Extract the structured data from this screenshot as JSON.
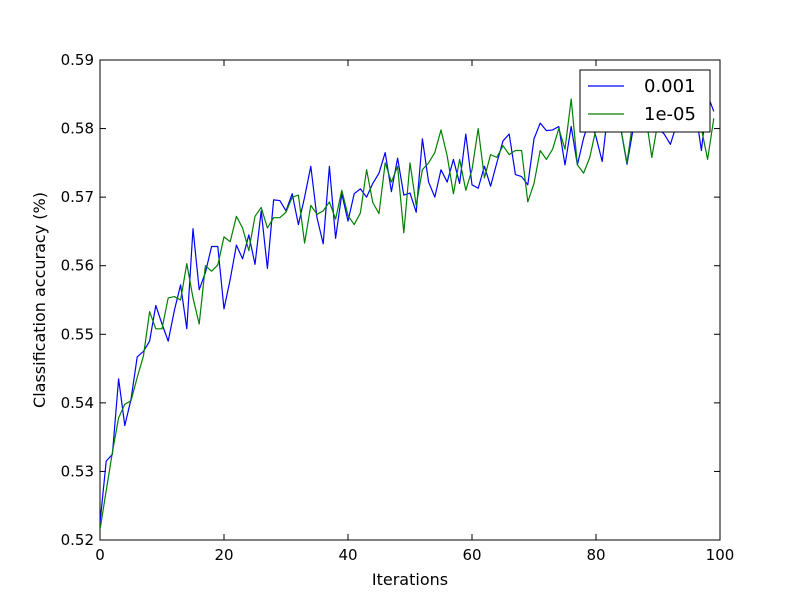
{
  "chart_data": {
    "type": "line",
    "xlabel": "Iterations",
    "ylabel": "Classification accuracy (%)",
    "xlim": [
      0,
      100
    ],
    "ylim": [
      0.52,
      0.59
    ],
    "x_ticks": [
      0,
      20,
      40,
      60,
      80,
      100
    ],
    "x_tick_labels": [
      "0",
      "20",
      "40",
      "60",
      "80",
      "100"
    ],
    "y_ticks": [
      0.52,
      0.53,
      0.54,
      0.55,
      0.56,
      0.57,
      0.58,
      0.59
    ],
    "y_tick_labels": [
      "0.52",
      "0.53",
      "0.54",
      "0.55",
      "0.56",
      "0.57",
      "0.58",
      "0.59"
    ],
    "grid": false,
    "legend_position": "top-right",
    "series": [
      {
        "name": "0.001",
        "color": "#0000ff",
        "x": [
          0,
          1,
          2,
          3,
          4,
          5,
          6,
          7,
          8,
          9,
          10,
          11,
          12,
          13,
          14,
          15,
          16,
          17,
          18,
          19,
          20,
          21,
          22,
          23,
          24,
          25,
          26,
          27,
          28,
          29,
          30,
          31,
          32,
          33,
          34,
          35,
          36,
          37,
          38,
          39,
          40,
          41,
          42,
          43,
          44,
          45,
          46,
          47,
          48,
          49,
          50,
          51,
          52,
          53,
          54,
          55,
          56,
          57,
          58,
          59,
          60,
          61,
          62,
          63,
          64,
          65,
          66,
          67,
          68,
          69,
          70,
          71,
          72,
          73,
          74,
          75,
          76,
          77,
          78,
          79,
          80,
          81,
          82,
          83,
          84,
          85,
          86,
          87,
          88,
          89,
          90,
          91,
          92,
          93,
          94,
          95,
          96,
          97,
          98,
          99
        ],
        "values": [
          0.5225,
          0.5315,
          0.5325,
          0.5435,
          0.5367,
          0.5405,
          0.5467,
          0.5475,
          0.549,
          0.5542,
          0.5515,
          0.549,
          0.5535,
          0.5572,
          0.5508,
          0.5654,
          0.5565,
          0.559,
          0.5628,
          0.5628,
          0.5537,
          0.558,
          0.563,
          0.561,
          0.5645,
          0.5602,
          0.568,
          0.5596,
          0.5696,
          0.5695,
          0.568,
          0.5705,
          0.566,
          0.57,
          0.5745,
          0.567,
          0.5632,
          0.5745,
          0.564,
          0.5705,
          0.5665,
          0.5705,
          0.5712,
          0.57,
          0.572,
          0.5735,
          0.5765,
          0.5708,
          0.5757,
          0.5703,
          0.5706,
          0.5678,
          0.5785,
          0.5722,
          0.57,
          0.574,
          0.5722,
          0.5755,
          0.572,
          0.5792,
          0.5718,
          0.5713,
          0.5745,
          0.5716,
          0.575,
          0.5782,
          0.5792,
          0.5733,
          0.573,
          0.5718,
          0.5785,
          0.5808,
          0.5797,
          0.5798,
          0.5803,
          0.5747,
          0.5803,
          0.5747,
          0.5786,
          0.5815,
          0.5788,
          0.5752,
          0.583,
          0.58,
          0.58,
          0.5748,
          0.58,
          0.5828,
          0.5798,
          0.5815,
          0.58,
          0.5792,
          0.5777,
          0.5806,
          0.5815,
          0.5802,
          0.583,
          0.5768,
          0.5849,
          0.5825
        ]
      },
      {
        "name": "1e-05",
        "color": "#008000",
        "x": [
          0,
          1,
          2,
          3,
          4,
          5,
          6,
          7,
          8,
          9,
          10,
          11,
          12,
          13,
          14,
          15,
          16,
          17,
          18,
          19,
          20,
          21,
          22,
          23,
          24,
          25,
          26,
          27,
          28,
          29,
          30,
          31,
          32,
          33,
          34,
          35,
          36,
          37,
          38,
          39,
          40,
          41,
          42,
          43,
          44,
          45,
          46,
          47,
          48,
          49,
          50,
          51,
          52,
          53,
          54,
          55,
          56,
          57,
          58,
          59,
          60,
          61,
          62,
          63,
          64,
          65,
          66,
          67,
          68,
          69,
          70,
          71,
          72,
          73,
          74,
          75,
          76,
          77,
          78,
          79,
          80,
          81,
          82,
          83,
          84,
          85,
          86,
          87,
          88,
          89,
          90,
          91,
          92,
          93,
          94,
          95,
          96,
          97,
          98,
          99
        ],
        "values": [
          0.5215,
          0.5272,
          0.5328,
          0.5378,
          0.5398,
          0.5403,
          0.5437,
          0.5468,
          0.5533,
          0.5508,
          0.5508,
          0.5553,
          0.5555,
          0.555,
          0.5603,
          0.5553,
          0.5515,
          0.56,
          0.5592,
          0.5601,
          0.5642,
          0.5635,
          0.5672,
          0.5655,
          0.5622,
          0.5672,
          0.5685,
          0.5655,
          0.567,
          0.567,
          0.5678,
          0.57,
          0.5703,
          0.5633,
          0.5688,
          0.5675,
          0.568,
          0.5693,
          0.5668,
          0.571,
          0.5673,
          0.566,
          0.5677,
          0.574,
          0.5692,
          0.5676,
          0.575,
          0.5722,
          0.5745,
          0.5648,
          0.575,
          0.5688,
          0.574,
          0.575,
          0.5765,
          0.5798,
          0.576,
          0.5705,
          0.5755,
          0.571,
          0.574,
          0.58,
          0.5728,
          0.5762,
          0.5758,
          0.5775,
          0.5762,
          0.5768,
          0.5768,
          0.5693,
          0.572,
          0.5768,
          0.5755,
          0.577,
          0.58,
          0.577,
          0.5843,
          0.5747,
          0.5735,
          0.5758,
          0.58,
          0.582,
          0.583,
          0.5808,
          0.58,
          0.575,
          0.5815,
          0.5808,
          0.582,
          0.5758,
          0.581,
          0.5823,
          0.58,
          0.5815,
          0.5823,
          0.5823,
          0.581,
          0.58,
          0.5755,
          0.5815
        ]
      }
    ]
  }
}
